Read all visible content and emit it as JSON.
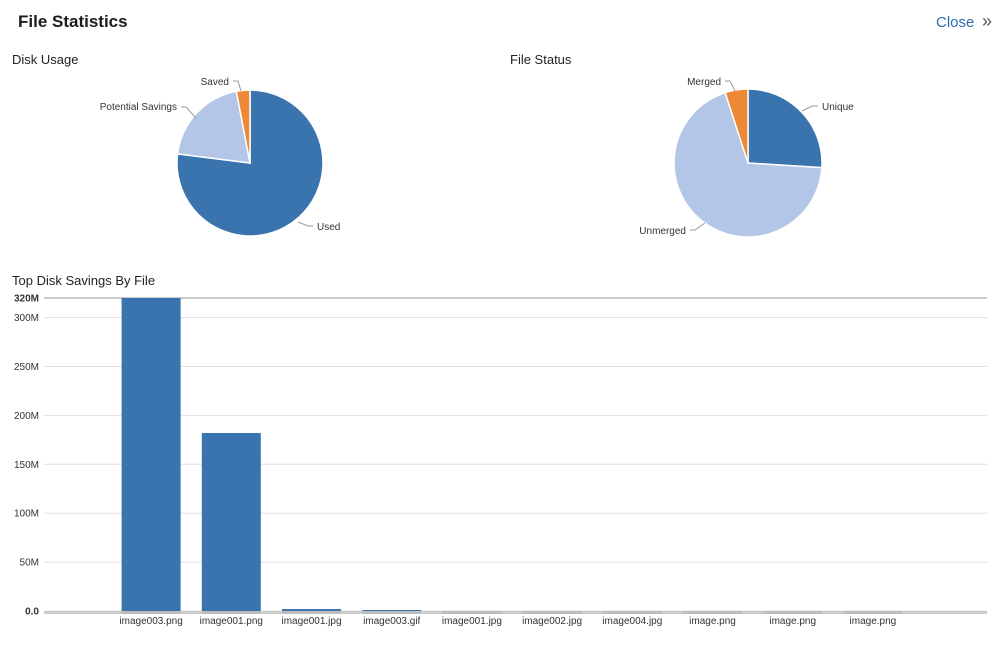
{
  "header": {
    "title": "File Statistics",
    "close_label": "Close",
    "collapse_icon": "double-chevron-right-icon"
  },
  "chart_data": [
    {
      "type": "pie",
      "title": "Disk Usage",
      "slices": [
        {
          "label": "Used",
          "value": 77,
          "color": "#3974af"
        },
        {
          "label": "Potential Savings",
          "value": 20,
          "color": "#b4c6e7"
        },
        {
          "label": "Saved",
          "value": 3,
          "color": "#ed8936"
        }
      ]
    },
    {
      "type": "pie",
      "title": "File Status",
      "slices": [
        {
          "label": "Unique",
          "value": 26,
          "color": "#3974af"
        },
        {
          "label": "Unmerged",
          "value": 69,
          "color": "#b4c6e7"
        },
        {
          "label": "Merged",
          "value": 5,
          "color": "#ed8936"
        }
      ]
    },
    {
      "type": "bar",
      "title": "Top Disk Savings By File",
      "categories": [
        "image003.png",
        "image001.png",
        "image001.jpg",
        "image003.gif",
        "image001.jpg",
        "image002.jpg",
        "image004.jpg",
        "image.png",
        "image.png",
        "image.png"
      ],
      "values": [
        320,
        182,
        2,
        0.4,
        0,
        0,
        0,
        0,
        0,
        0
      ],
      "unit": "M",
      "ylim": [
        0,
        320
      ],
      "yticks": [
        "0.0",
        "50M",
        "100M",
        "150M",
        "200M",
        "250M",
        "300M",
        "320M"
      ],
      "ytick_values": [
        0,
        50,
        100,
        150,
        200,
        250,
        300,
        320
      ],
      "color": "#3974af",
      "grid": true
    }
  ]
}
